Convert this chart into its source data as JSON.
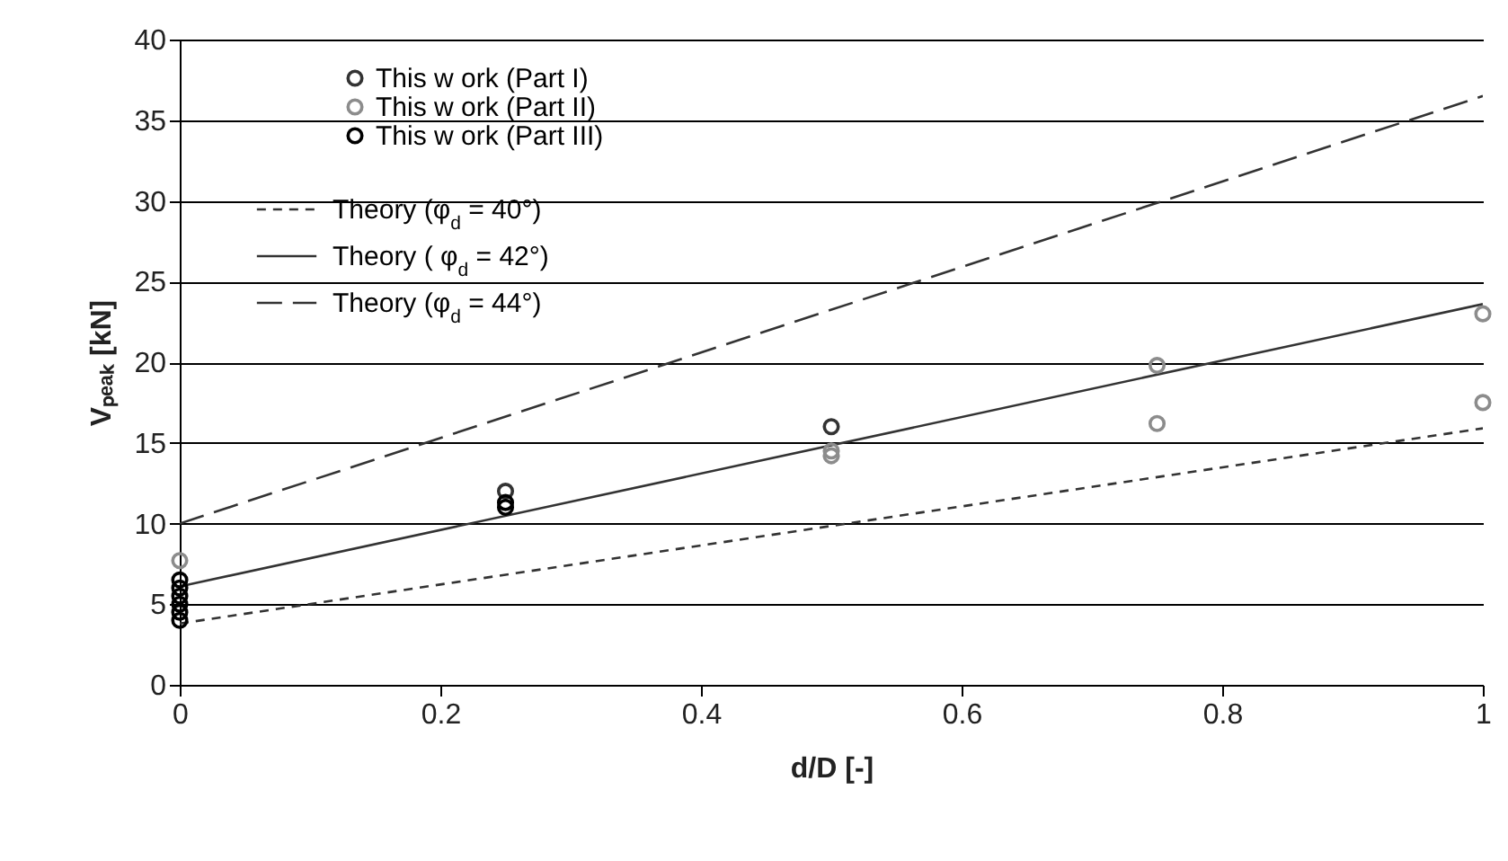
{
  "chart_data": {
    "type": "scatter",
    "xlabel": "d/D [-]",
    "ylabel": "Vₚₑₐₖ [kN]",
    "xlim": [
      0,
      1
    ],
    "ylim": [
      0,
      40
    ],
    "xticks": [
      0,
      0.2,
      0.4,
      0.6,
      0.8,
      1
    ],
    "yticks": [
      0,
      5,
      10,
      15,
      20,
      25,
      30,
      35,
      40
    ],
    "grid": "y",
    "legend": "top left",
    "marker": "circle",
    "series": [
      {
        "name": "This w ork (Part I)",
        "color": "#333333",
        "x": [
          0.25,
          0.5
        ],
        "values": [
          12.0,
          16.0
        ]
      },
      {
        "name": "This w ork (Part II)",
        "color": "#8c8c8c",
        "x": [
          0,
          0.5,
          0.5,
          0.75,
          0.75,
          1,
          1
        ],
        "values": [
          7.7,
          14.5,
          14.2,
          19.8,
          16.2,
          23.0,
          17.5
        ]
      },
      {
        "name": "This w ork (Part III)",
        "color": "#000000",
        "x": [
          0,
          0,
          0,
          0,
          0,
          0,
          0.25,
          0.25
        ],
        "values": [
          4.0,
          4.5,
          5.0,
          5.5,
          6.0,
          6.5,
          11.0,
          11.3
        ]
      },
      {
        "name": "Theory (φ$_{d}$ = 40°)",
        "type": "line",
        "marker": "none",
        "line_style": "dotted",
        "color": "#333333",
        "x": [
          0,
          1
        ],
        "values": [
          3.8,
          15.9
        ]
      },
      {
        "name": "Theory ( φ$_{d}$ = 42°)",
        "type": "line",
        "marker": "none",
        "line_style": "solid",
        "color": "#333333",
        "x": [
          0,
          1
        ],
        "values": [
          6.1,
          23.6
        ]
      },
      {
        "name": "Theory (φ$_{d}$ = 44°)",
        "type": "line",
        "marker": "none",
        "line_style": "dashed",
        "color": "#333333",
        "x": [
          0,
          1
        ],
        "values": [
          10.0,
          36.5
        ]
      }
    ]
  }
}
